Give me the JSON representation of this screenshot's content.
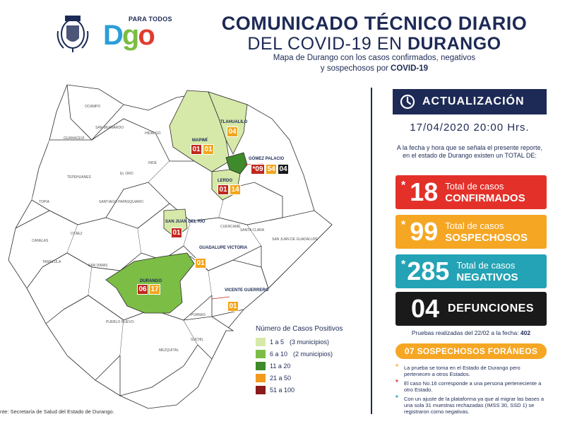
{
  "header": {
    "brand_tagline": "PARA TODOS",
    "brand_name": "Dgo",
    "title_line1": "COMUNICADO TÉCNICO DIARIO",
    "title_line2_prefix": "DEL COVID-19 EN ",
    "title_line2_bold": "DURANGO",
    "subtitle_line1": "Mapa de Durango con los casos confirmados, negativos",
    "subtitle_line2_prefix": "y sospechosos por ",
    "subtitle_line2_bold": "COVID-19"
  },
  "map": {
    "municipalities": [
      {
        "name": "MAPIMÍ",
        "values": [
          "01",
          "01"
        ],
        "colors": [
          "red",
          "orange"
        ]
      },
      {
        "name": "TLAHUALILO",
        "values": [
          "04"
        ],
        "colors": [
          "orange"
        ]
      },
      {
        "name": "GÓMEZ PALACIO",
        "values": [
          "*09",
          "54",
          "04"
        ],
        "colors": [
          "red",
          "orange",
          "black"
        ]
      },
      {
        "name": "LERDO",
        "values": [
          "01",
          "14"
        ],
        "colors": [
          "red",
          "orange"
        ]
      },
      {
        "name": "SAN JUAN DEL RÍO",
        "values": [
          "01"
        ],
        "colors": [
          "red"
        ]
      },
      {
        "name": "GUADALUPE VICTORIA",
        "values": [
          "01"
        ],
        "colors": [
          "orange"
        ]
      },
      {
        "name": "DURANGO",
        "values": [
          "06",
          "17"
        ],
        "colors": [
          "red",
          "orange"
        ]
      },
      {
        "name": "VICENTE GUERRERO",
        "values": [
          "01"
        ],
        "colors": [
          "orange"
        ]
      }
    ],
    "fill_colors": {
      "light_green": "#d6e9a8",
      "green": "#7cbd45",
      "dark_green": "#3f8a2a",
      "orange": "#f39a1e",
      "dark_red": "#8b1a1a"
    },
    "source": "nte: Secretaría de Salud del Estado de Durango."
  },
  "legend": {
    "title": "Número de Casos Positivos",
    "items": [
      {
        "label": "1 a 5",
        "note": "(3 municipios)",
        "color": "#d6e9a8"
      },
      {
        "label": "6 a 10",
        "note": "(2 municipios)",
        "color": "#7cbd45"
      },
      {
        "label": "11 a 20",
        "note": "",
        "color": "#3f8a2a"
      },
      {
        "label": "21 a 50",
        "note": "",
        "color": "#f39a1e"
      },
      {
        "label": "51 a 100",
        "note": "",
        "color": "#8b1a1a"
      }
    ]
  },
  "panel": {
    "update_label": "ACTUALIZACIÓN",
    "update_time": "17/04/2020  20:00 Hrs.",
    "intro": "A la fecha y hora que se señala el presente reporte, en el estado de Durango existen un TOTAL DE:",
    "confirmed": {
      "star": "*",
      "value": "18",
      "line1": "Total de casos",
      "line2": "CONFIRMADOS",
      "color": "#e3312a"
    },
    "suspect": {
      "star": "*",
      "value": "99",
      "line1": "Total de casos",
      "line2": "SOSPECHOSOS",
      "color": "#f5a623"
    },
    "negative": {
      "star": "*",
      "value": "285",
      "line1": "Total de casos",
      "line2": "NEGATIVOS",
      "color": "#23a3b5"
    },
    "deaths": {
      "value": "04",
      "label": "DEFUNCIONES",
      "color": "#1a1a1a"
    },
    "tests_prefix": "Pruebas realizadas del 22/02 a la fecha: ",
    "tests_value": "402",
    "foreign": "07  SOSPECHOSOS FORÁNEOS",
    "notes": [
      "La prueba se toma en el Estado de Durango pero pertenecen a otros Estados.",
      "El caso No.16 corresponde a una persona perteneciente a otro Estado.",
      "Con un ajuste de la plataforma ya que al migrar las bases a una sola 31 muestras rechazadas (IMSS 30, SSD 1) se registraron como negativas."
    ]
  }
}
